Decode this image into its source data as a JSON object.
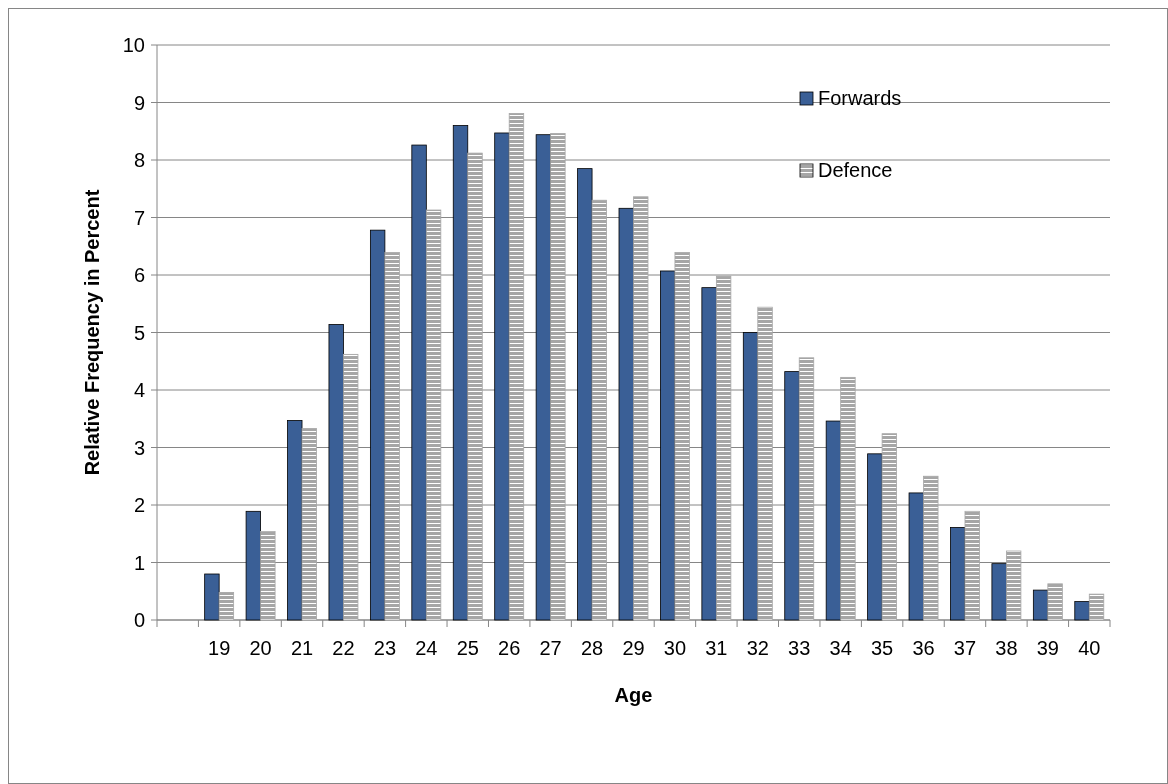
{
  "chart_data": {
    "type": "bar",
    "xlabel": "Age",
    "ylabel": "Relative Frequency in Percent",
    "categories": [
      null,
      "19",
      "20",
      "21",
      "22",
      "23",
      "24",
      "25",
      "26",
      "27",
      "28",
      "29",
      "30",
      "31",
      "32",
      "33",
      "34",
      "35",
      "36",
      "37",
      "38",
      "39",
      "40"
    ],
    "series": [
      {
        "name": "Forwards",
        "color": "#3a5f96",
        "values": [
          null,
          0.8,
          1.89,
          3.47,
          5.14,
          6.78,
          8.26,
          8.6,
          8.47,
          8.44,
          7.85,
          7.16,
          6.07,
          5.78,
          5.0,
          4.32,
          3.46,
          2.89,
          2.21,
          1.61,
          0.98,
          0.52,
          0.32
        ]
      },
      {
        "name": "Defence",
        "color": "#a6a6a6",
        "values": [
          null,
          0.48,
          1.54,
          3.33,
          4.62,
          6.39,
          7.13,
          8.12,
          8.81,
          8.46,
          7.3,
          7.36,
          6.39,
          5.98,
          5.44,
          4.56,
          4.22,
          3.24,
          2.5,
          1.89,
          1.2,
          0.63,
          0.45
        ]
      }
    ],
    "ylim": [
      0,
      10
    ],
    "yticks": [
      0,
      1,
      2,
      3,
      4,
      5,
      6,
      7,
      8,
      9,
      10
    ],
    "grid": "y",
    "legend": "top right"
  }
}
